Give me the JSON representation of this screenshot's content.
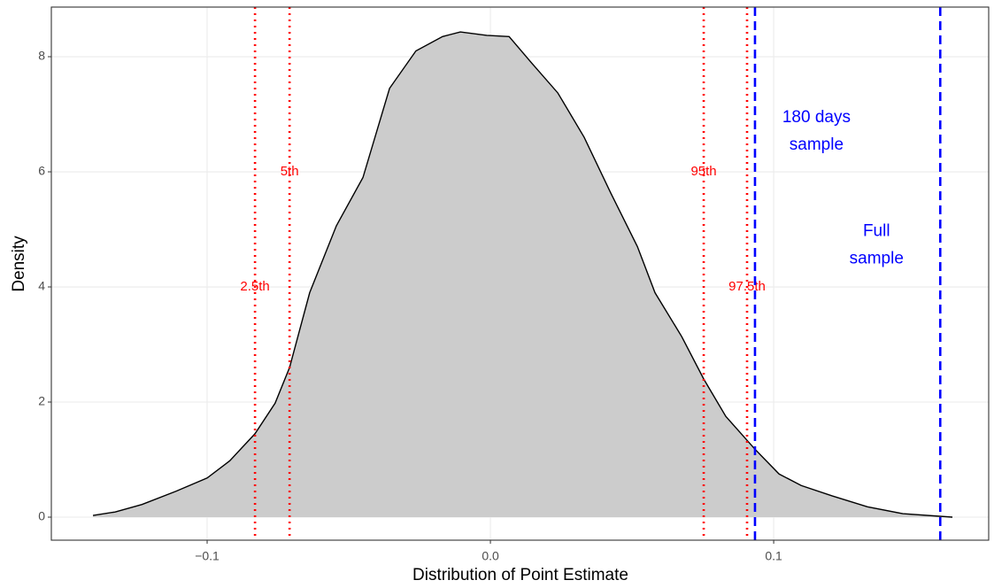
{
  "chart_data": {
    "type": "density",
    "xlabel": "Distribution of Point Estimate",
    "ylabel": "Density",
    "xlim": [
      -0.155,
      0.1759
    ],
    "ylim": [
      -0.4,
      8.862
    ],
    "xticks": [
      {
        "value": -0.1,
        "label": "−0.1"
      },
      {
        "value": 0,
        "label": "0.0"
      },
      {
        "value": 0.1,
        "label": "0.1"
      }
    ],
    "yticks": [
      0,
      2,
      4,
      6,
      8
    ],
    "grid": true,
    "color": "#cccccc",
    "x": [
      -0.1403,
      -0.1325,
      -0.123,
      -0.111,
      -0.1,
      -0.092,
      -0.0831,
      -0.076,
      -0.0709,
      -0.0638,
      -0.0544,
      -0.045,
      -0.0356,
      -0.0263,
      -0.0169,
      -0.0106,
      -0.0013,
      0.0066,
      0.0144,
      0.0238,
      0.0331,
      0.0425,
      0.0519,
      0.0581,
      0.0675,
      0.0753,
      0.0831,
      0.0934,
      0.1019,
      0.1097,
      0.1206,
      0.1331,
      0.1456,
      0.1631
    ],
    "values": [
      0.03,
      0.09,
      0.22,
      0.45,
      0.68,
      0.98,
      1.45,
      1.98,
      2.6,
      3.9,
      5.06,
      5.9,
      7.45,
      8.1,
      8.35,
      8.43,
      8.37,
      8.35,
      7.9,
      7.37,
      6.6,
      5.63,
      4.7,
      3.9,
      3.14,
      2.4,
      1.75,
      1.18,
      0.75,
      0.55,
      0.37,
      0.18,
      0.06,
      0.0
    ],
    "vlines": [
      {
        "x": -0.0831,
        "label": "2.5th",
        "label_y": 4,
        "color": "#ff0000",
        "style": "dotted"
      },
      {
        "x": -0.0709,
        "label": "5th",
        "label_y": 6,
        "color": "#ff0000",
        "style": "dotted"
      },
      {
        "x": 0.0753,
        "label": "95th",
        "label_y": 6,
        "color": "#ff0000",
        "style": "dotted"
      },
      {
        "x": 0.0906,
        "label": "97.5th",
        "label_y": 4,
        "color": "#ff0000",
        "style": "dotted"
      },
      {
        "x": 0.0934,
        "color": "#0000ff",
        "style": "dashed"
      },
      {
        "x": 0.1588,
        "color": "#0000ff",
        "style": "dashed"
      }
    ],
    "annotations": [
      {
        "lines": [
          "180 days",
          "sample"
        ],
        "x": 0.1151,
        "y": 6.7,
        "color": "#0000ff"
      },
      {
        "lines": [
          "Full",
          "sample"
        ],
        "x": 0.1363,
        "y": 4.72,
        "color": "#0000ff"
      }
    ]
  }
}
